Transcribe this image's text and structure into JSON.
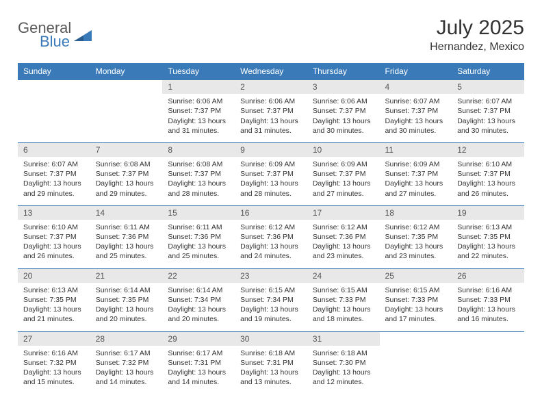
{
  "brand": {
    "word1": "General",
    "word2": "Blue",
    "accent": "#3a7ab8"
  },
  "title": "July 2025",
  "location": "Hernandez, Mexico",
  "day_headers": [
    "Sunday",
    "Monday",
    "Tuesday",
    "Wednesday",
    "Thursday",
    "Friday",
    "Saturday"
  ],
  "colors": {
    "header_bg": "#3a7ab8",
    "header_fg": "#ffffff",
    "daynum_bg": "#e8e8e8",
    "rule": "#3a7ab8"
  },
  "weeks": [
    [
      null,
      null,
      {
        "n": "1",
        "sunrise": "6:06 AM",
        "sunset": "7:37 PM",
        "daylight": "13 hours and 31 minutes."
      },
      {
        "n": "2",
        "sunrise": "6:06 AM",
        "sunset": "7:37 PM",
        "daylight": "13 hours and 31 minutes."
      },
      {
        "n": "3",
        "sunrise": "6:06 AM",
        "sunset": "7:37 PM",
        "daylight": "13 hours and 30 minutes."
      },
      {
        "n": "4",
        "sunrise": "6:07 AM",
        "sunset": "7:37 PM",
        "daylight": "13 hours and 30 minutes."
      },
      {
        "n": "5",
        "sunrise": "6:07 AM",
        "sunset": "7:37 PM",
        "daylight": "13 hours and 30 minutes."
      }
    ],
    [
      {
        "n": "6",
        "sunrise": "6:07 AM",
        "sunset": "7:37 PM",
        "daylight": "13 hours and 29 minutes."
      },
      {
        "n": "7",
        "sunrise": "6:08 AM",
        "sunset": "7:37 PM",
        "daylight": "13 hours and 29 minutes."
      },
      {
        "n": "8",
        "sunrise": "6:08 AM",
        "sunset": "7:37 PM",
        "daylight": "13 hours and 28 minutes."
      },
      {
        "n": "9",
        "sunrise": "6:09 AM",
        "sunset": "7:37 PM",
        "daylight": "13 hours and 28 minutes."
      },
      {
        "n": "10",
        "sunrise": "6:09 AM",
        "sunset": "7:37 PM",
        "daylight": "13 hours and 27 minutes."
      },
      {
        "n": "11",
        "sunrise": "6:09 AM",
        "sunset": "7:37 PM",
        "daylight": "13 hours and 27 minutes."
      },
      {
        "n": "12",
        "sunrise": "6:10 AM",
        "sunset": "7:37 PM",
        "daylight": "13 hours and 26 minutes."
      }
    ],
    [
      {
        "n": "13",
        "sunrise": "6:10 AM",
        "sunset": "7:37 PM",
        "daylight": "13 hours and 26 minutes."
      },
      {
        "n": "14",
        "sunrise": "6:11 AM",
        "sunset": "7:36 PM",
        "daylight": "13 hours and 25 minutes."
      },
      {
        "n": "15",
        "sunrise": "6:11 AM",
        "sunset": "7:36 PM",
        "daylight": "13 hours and 25 minutes."
      },
      {
        "n": "16",
        "sunrise": "6:12 AM",
        "sunset": "7:36 PM",
        "daylight": "13 hours and 24 minutes."
      },
      {
        "n": "17",
        "sunrise": "6:12 AM",
        "sunset": "7:36 PM",
        "daylight": "13 hours and 23 minutes."
      },
      {
        "n": "18",
        "sunrise": "6:12 AM",
        "sunset": "7:35 PM",
        "daylight": "13 hours and 23 minutes."
      },
      {
        "n": "19",
        "sunrise": "6:13 AM",
        "sunset": "7:35 PM",
        "daylight": "13 hours and 22 minutes."
      }
    ],
    [
      {
        "n": "20",
        "sunrise": "6:13 AM",
        "sunset": "7:35 PM",
        "daylight": "13 hours and 21 minutes."
      },
      {
        "n": "21",
        "sunrise": "6:14 AM",
        "sunset": "7:35 PM",
        "daylight": "13 hours and 20 minutes."
      },
      {
        "n": "22",
        "sunrise": "6:14 AM",
        "sunset": "7:34 PM",
        "daylight": "13 hours and 20 minutes."
      },
      {
        "n": "23",
        "sunrise": "6:15 AM",
        "sunset": "7:34 PM",
        "daylight": "13 hours and 19 minutes."
      },
      {
        "n": "24",
        "sunrise": "6:15 AM",
        "sunset": "7:33 PM",
        "daylight": "13 hours and 18 minutes."
      },
      {
        "n": "25",
        "sunrise": "6:15 AM",
        "sunset": "7:33 PM",
        "daylight": "13 hours and 17 minutes."
      },
      {
        "n": "26",
        "sunrise": "6:16 AM",
        "sunset": "7:33 PM",
        "daylight": "13 hours and 16 minutes."
      }
    ],
    [
      {
        "n": "27",
        "sunrise": "6:16 AM",
        "sunset": "7:32 PM",
        "daylight": "13 hours and 15 minutes."
      },
      {
        "n": "28",
        "sunrise": "6:17 AM",
        "sunset": "7:32 PM",
        "daylight": "13 hours and 14 minutes."
      },
      {
        "n": "29",
        "sunrise": "6:17 AM",
        "sunset": "7:31 PM",
        "daylight": "13 hours and 14 minutes."
      },
      {
        "n": "30",
        "sunrise": "6:18 AM",
        "sunset": "7:31 PM",
        "daylight": "13 hours and 13 minutes."
      },
      {
        "n": "31",
        "sunrise": "6:18 AM",
        "sunset": "7:30 PM",
        "daylight": "13 hours and 12 minutes."
      },
      null,
      null
    ]
  ],
  "labels": {
    "sunrise": "Sunrise: ",
    "sunset": "Sunset: ",
    "daylight": "Daylight: "
  }
}
